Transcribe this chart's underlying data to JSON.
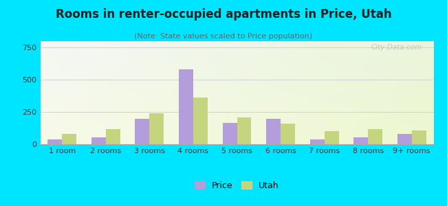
{
  "title": "Rooms in renter-occupied apartments in Price, Utah",
  "subtitle": "(Note: State values scaled to Price population)",
  "categories": [
    "1 room",
    "2 rooms",
    "3 rooms",
    "4 rooms",
    "5 rooms",
    "6 rooms",
    "7 rooms",
    "8 rooms",
    "9+ rooms"
  ],
  "price_values": [
    40,
    55,
    195,
    580,
    165,
    200,
    40,
    55,
    80
  ],
  "utah_values": [
    80,
    115,
    240,
    365,
    210,
    160,
    100,
    120,
    105
  ],
  "price_color": "#b39ddb",
  "utah_color": "#c5d47f",
  "bg_outer": "#00e5ff",
  "ylim": [
    0,
    800
  ],
  "yticks": [
    0,
    250,
    500,
    750
  ],
  "grid_color": "#d0d0d0",
  "title_fontsize": 12,
  "subtitle_fontsize": 8,
  "tick_fontsize": 8,
  "legend_fontsize": 9,
  "watermark": "City-Data.com"
}
